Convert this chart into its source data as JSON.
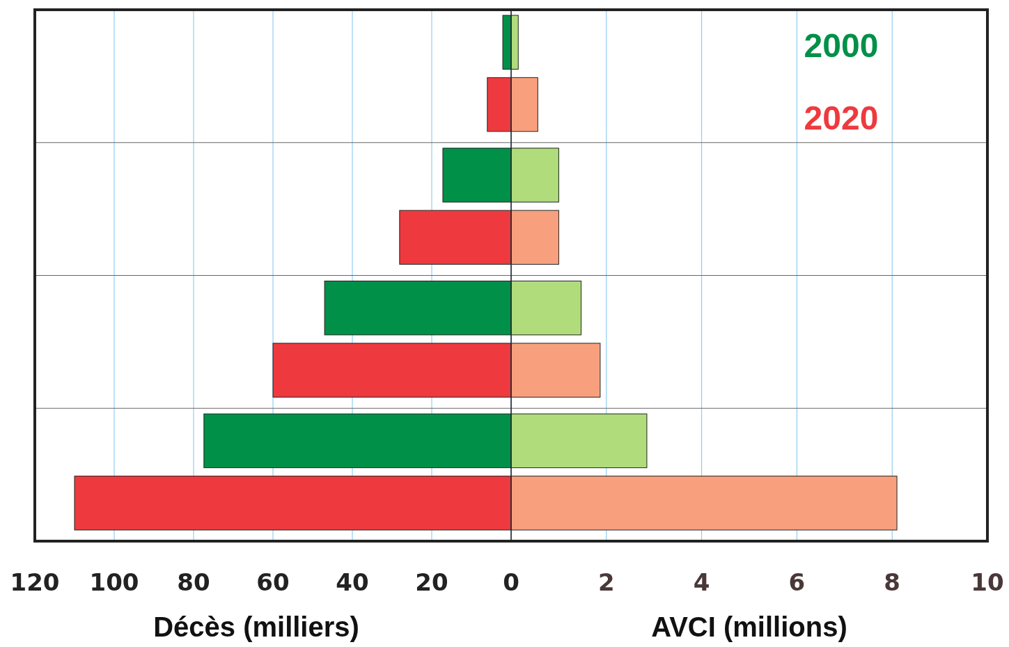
{
  "chart_data": [
    {
      "type": "bar",
      "orientation": "horizontal",
      "xlabel": "Décès (milliers)",
      "categories": [
        null,
        null,
        null,
        null
      ],
      "xlim": [
        120,
        0
      ],
      "xticks": [
        120,
        100,
        80,
        60,
        40,
        20,
        0
      ],
      "grid": "x",
      "series": [
        {
          "name": "2000",
          "color": "#009048",
          "values": [
            2.1,
            17.2,
            47,
            77.4
          ]
        },
        {
          "name": "2020",
          "color": "#ee3a3e",
          "values": [
            6.0,
            28.1,
            60,
            110
          ]
        }
      ],
      "legend": "top right"
    },
    {
      "type": "bar",
      "orientation": "horizontal",
      "xlabel": "AVCI (millions)",
      "categories": [
        null,
        null,
        null,
        null
      ],
      "xlim": [
        0,
        10
      ],
      "xticks": [
        {
          "value": 0,
          "label": null
        },
        2,
        4,
        6,
        8,
        10
      ],
      "grid": "x",
      "series": [
        {
          "color": "#b0dc7c",
          "values": [
            0.15,
            1.0,
            1.47,
            2.85
          ]
        },
        {
          "color": "#f8a07e",
          "values": [
            0.56,
            1.0,
            1.87,
            8.1
          ]
        }
      ]
    }
  ]
}
